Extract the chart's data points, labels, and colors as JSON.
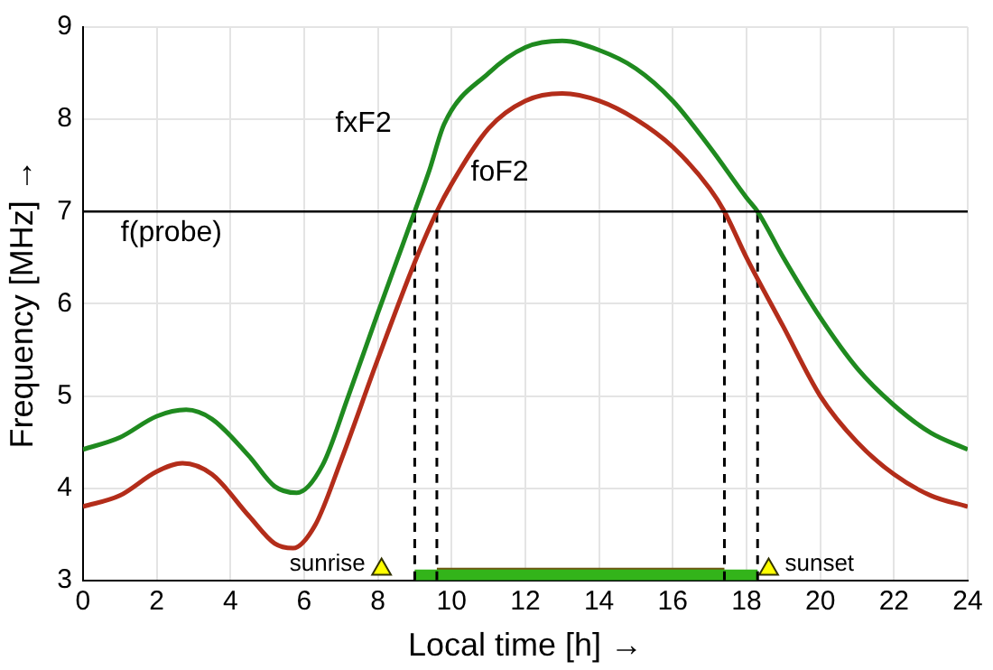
{
  "chart_data": {
    "type": "line",
    "xlabel": "Local time [h] →",
    "ylabel": "Frequency [MHz] →",
    "xlim": [
      0,
      24
    ],
    "xticks": [
      0,
      2,
      4,
      6,
      8,
      10,
      12,
      14,
      16,
      18,
      20,
      22,
      24
    ],
    "ylim": [
      3,
      9
    ],
    "yticks": [
      3,
      4,
      5,
      6,
      7,
      8,
      9
    ],
    "grid": true,
    "legend": false,
    "marker": "none",
    "line_style": "solid",
    "series": [
      {
        "color": "#1f8a1f",
        "x": [
          0,
          1,
          2,
          2.8,
          3.5,
          4.5,
          5.2,
          5.8,
          6.5,
          7.2,
          8,
          8.5,
          9,
          9.4,
          9.8,
          11,
          12,
          13,
          14,
          15,
          16,
          17,
          18,
          18.3,
          19,
          20,
          21,
          22,
          23,
          24
        ],
        "values": [
          4.42,
          4.55,
          4.78,
          4.85,
          4.75,
          4.35,
          4.02,
          3.95,
          4.25,
          5.0,
          5.9,
          6.45,
          7.0,
          7.45,
          7.95,
          8.5,
          8.78,
          8.85,
          8.75,
          8.55,
          8.2,
          7.7,
          7.15,
          7.0,
          6.5,
          5.85,
          5.3,
          4.9,
          4.6,
          4.42
        ]
      },
      {
        "color": "#b32d1a",
        "x": [
          0,
          1,
          2,
          2.7,
          3.5,
          4.5,
          5.2,
          5.7,
          6.3,
          7,
          8,
          9,
          9.6,
          10,
          11,
          12,
          13,
          14,
          15,
          16,
          17,
          17.4,
          18,
          19,
          20,
          21,
          22,
          23,
          24
        ],
        "values": [
          3.8,
          3.92,
          4.18,
          4.27,
          4.15,
          3.7,
          3.4,
          3.35,
          3.6,
          4.3,
          5.4,
          6.45,
          7.0,
          7.3,
          7.9,
          8.2,
          8.28,
          8.2,
          8.0,
          7.7,
          7.25,
          7.0,
          6.5,
          5.75,
          5.0,
          4.5,
          4.15,
          3.92,
          3.8
        ]
      },
      {
        "color": "#000000",
        "line_style": "dashed",
        "x": [
          9,
          9
        ],
        "values": [
          3,
          7
        ]
      },
      {
        "color": "#000000",
        "line_style": "dashed",
        "x": [
          9.6,
          9.6
        ],
        "values": [
          3,
          7
        ]
      },
      {
        "color": "#000000",
        "line_style": "dashed",
        "x": [
          17.4,
          17.4
        ],
        "values": [
          3,
          7
        ]
      },
      {
        "color": "#000000",
        "line_style": "dashed",
        "x": [
          18.3,
          18.3
        ],
        "values": [
          3,
          7
        ]
      },
      {
        "color": "#33b41a",
        "x": [
          9,
          18.3
        ],
        "values": [
          3.06,
          3.06
        ]
      },
      {
        "color": "#6e5a12",
        "x": [
          9.6,
          17.4
        ],
        "values": [
          3.08,
          3.08
        ]
      },
      {
        "type": "scatter",
        "marker": "triangle",
        "color": "#ffff00",
        "x": [
          8.1,
          18.6
        ],
        "values": [
          3.12,
          3.12
        ]
      }
    ],
    "ref_lines": [
      {
        "axis": "y",
        "value": 7,
        "label": "f(probe)",
        "color": "#000000"
      }
    ],
    "annotations": [
      "fxF2",
      "foF2",
      {
        "text": "sunrise",
        "x": 8.1,
        "y": 3.12
      },
      {
        "text": "sunset",
        "x": 18.6,
        "y": 3.12
      }
    ]
  }
}
